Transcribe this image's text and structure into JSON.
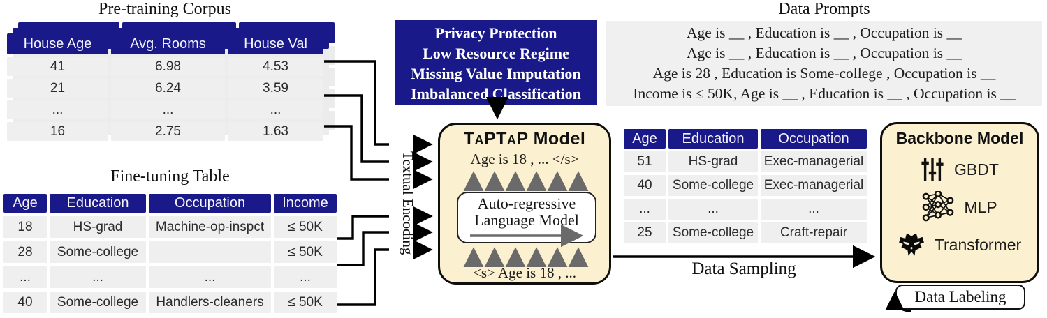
{
  "colors": {
    "navy": "#191989",
    "cream": "#fbf0cf",
    "row_gray": "#efefef",
    "prompt_gray": "#f0f0f0",
    "arrow_gray": "#6a6a6a",
    "line_black": "#000000"
  },
  "pretraining": {
    "title": "Pre-training Corpus",
    "columns": [
      "House Age",
      "Avg. Rooms",
      "House Val"
    ],
    "rows": [
      [
        "41",
        "6.98",
        "4.53"
      ],
      [
        "21",
        "6.24",
        "3.59"
      ],
      [
        "...",
        "...",
        "..."
      ],
      [
        "16",
        "2.75",
        "1.63"
      ]
    ]
  },
  "finetuning": {
    "title": "Fine-tuning Table",
    "columns": [
      "Age",
      "Education",
      "Occupation",
      "Income"
    ],
    "rows": [
      [
        "18",
        "HS-grad",
        "Machine-op-inspct",
        "≤ 50K"
      ],
      [
        "28",
        "Some-college",
        "",
        "≤ 50K"
      ],
      [
        "...",
        "...",
        "...",
        "..."
      ],
      [
        "40",
        "Some-college",
        "Handlers-cleaners",
        "≤ 50K"
      ]
    ]
  },
  "challenges": {
    "lines": [
      "Privacy Protection",
      "Low Resource Regime",
      "Missing Value Imputation",
      "Imbalanced Classification"
    ]
  },
  "prompts": {
    "title": "Data Prompts",
    "lines": [
      "Age is __ , Education is __ , Occupation is __",
      "Age is __ , Education is __ , Occupation is __",
      "Age is 28 , Education is Some-college , Occupation is __",
      "Income is ≤ 50K, Age is __ , Education is __ , Occupation is __"
    ]
  },
  "encoding_label": "Textual Encoding",
  "taptap": {
    "title_html": "T<span class='sc'>A</span>PT<span class='sc'>A</span>P Model",
    "output_text": "Age is 18 , ... </s>",
    "model_line1": "Auto-regressive",
    "model_line2": "Language Model",
    "input_text": "<s> Age is 18 , ..."
  },
  "generated": {
    "columns": [
      "Age",
      "Education",
      "Occupation"
    ],
    "rows": [
      [
        "51",
        "HS-grad",
        "Exec-managerial"
      ],
      [
        "40",
        "Some-college",
        "Exec-managerial"
      ],
      [
        "...",
        "...",
        "..."
      ],
      [
        "25",
        "Some-college",
        "Craft-repair"
      ]
    ]
  },
  "sampling_label": "Data Sampling",
  "backbone": {
    "title": "Backbone Model",
    "items": [
      {
        "icon": "sliders-icon",
        "label": "GBDT"
      },
      {
        "icon": "network-icon",
        "label": "MLP"
      },
      {
        "icon": "transformer-icon",
        "label": "Transformer"
      }
    ]
  },
  "labeling_label": "Data Labeling"
}
